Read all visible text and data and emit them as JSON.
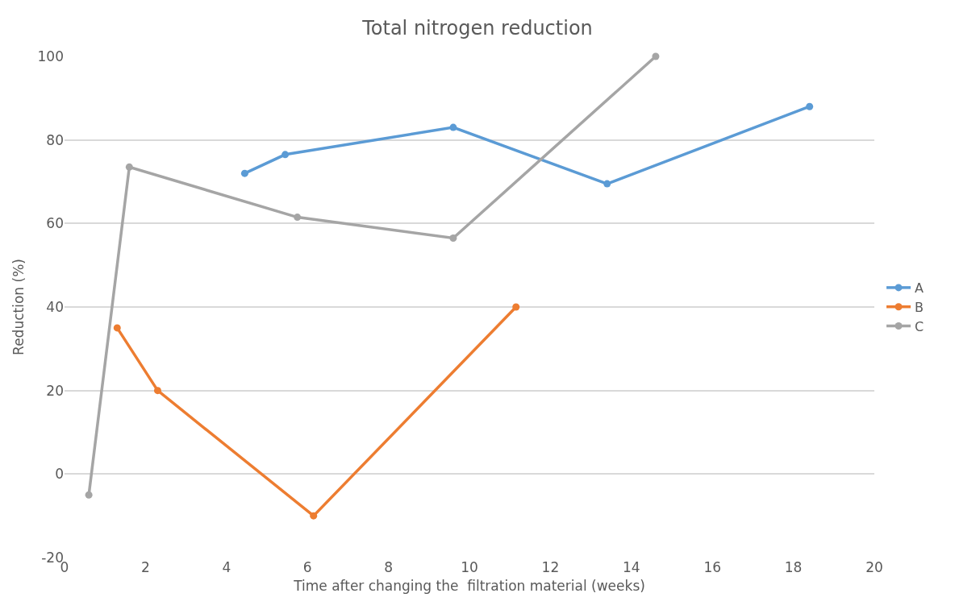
{
  "chart_data": {
    "type": "line",
    "title": "Total nitrogen reduction",
    "xlabel": "Time after changing the  filtration material (weeks)",
    "ylabel": "Reduction (%)",
    "xlim": [
      0,
      20
    ],
    "xticks": [
      0,
      2,
      4,
      6,
      8,
      10,
      12,
      14,
      16,
      18,
      20
    ],
    "ylim": [
      -20,
      100
    ],
    "yticks": [
      -20,
      0,
      20,
      40,
      60,
      80,
      100
    ],
    "grid": "y",
    "legend": "right",
    "marker": "circle",
    "line_style": "solid",
    "series": [
      {
        "name": "A",
        "color": "#5b9bd5",
        "x": [
          4.45,
          5.45,
          9.6,
          13.4,
          18.4
        ],
        "values": [
          72,
          76.5,
          83,
          69.5,
          88
        ]
      },
      {
        "name": "B",
        "color": "#ed7d31",
        "x": [
          1.3,
          2.3,
          6.15,
          11.15
        ],
        "values": [
          35,
          20,
          -10,
          40
        ]
      },
      {
        "name": "C",
        "color": "#a5a5a5",
        "x": [
          0.6,
          1.6,
          5.75,
          9.6,
          14.6
        ],
        "values": [
          -5,
          73.5,
          61.5,
          56.5,
          100
        ]
      }
    ]
  }
}
